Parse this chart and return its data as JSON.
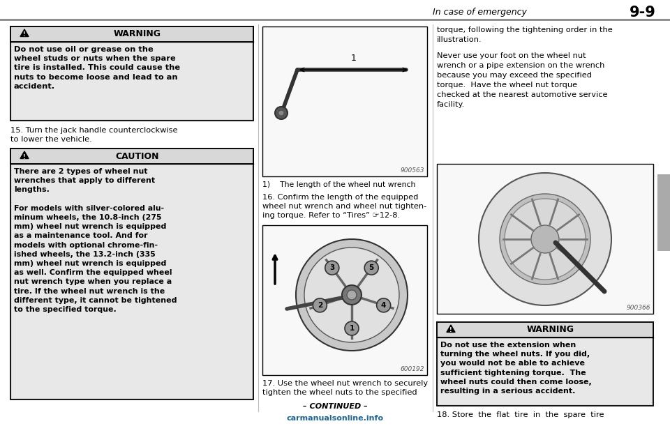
{
  "bg_color": "#ffffff",
  "page_title": "In case of emergency",
  "page_number": "9-9",
  "warning1_title": "WARNING",
  "warning1_text": "Do not use oil or grease on the\nwheel studs or nuts when the spare\ntire is installed. This could cause the\nnuts to become loose and lead to an\naccident.",
  "step15": "15. Turn the jack handle counterclockwise\nto lower the vehicle.",
  "caution_title": "CAUTION",
  "caution_text1": "There are 2 types of wheel nut\nwrenches that apply to different\nlengths.",
  "caution_text2": "For models with silver-colored alu-\nminum wheels, the 10.8-inch (275\nmm) wheel nut wrench is equipped\nas a maintenance tool. And for\nmodels with optional chrome-fin-\nished wheels, the 13.2-inch (335\nmm) wheel nut wrench is equipped\nas well. Confirm the equipped wheel\nnut wrench type when you replace a\ntire. If the wheel nut wrench is the\ndifferent type, it cannot be tightened\nto the specified torque.",
  "img1_code": "900563",
  "img1_caption": "1)    The length of the wheel nut wrench",
  "step16": "16. Confirm the length of the equipped\nwheel nut wrench and wheel nut tighten-\ning torque. Refer to “Tires” ☞12-8.",
  "img2_code": "600192",
  "step17": "17. Use the wheel nut wrench to securely\ntighten the wheel nuts to the specified",
  "col3_text1": "torque, following the tightening order in the\nillustration.",
  "col3_text2": "Never use your foot on the wheel nut\nwrench or a pipe extension on the wrench\nbecause you may exceed the specified\ntorque.  Have the wheel nut torque\nchecked at the nearest automotive service\nfacility.",
  "img3_code": "900366",
  "warning2_title": "WARNING",
  "warning2_text": "Do not use the extension when\nturning the wheel nuts. If you did,\nyou would not be able to achieve\nsufficient tightening torque.  The\nwheel nuts could then come loose,\nresulting in a serious accident.",
  "step18": "18. Store  the  flat  tire  in  the  spare  tire",
  "continued": "– CONTINUED –",
  "watermark": "carmanualsonline.info"
}
